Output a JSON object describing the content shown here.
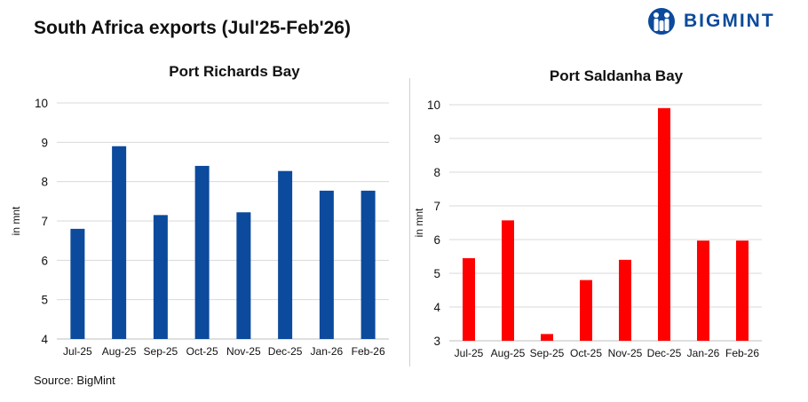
{
  "page_title": "South Africa exports (Jul'25-Feb'26)",
  "logo": {
    "text": "BIGMINT",
    "icon": "bigmint-logo-icon",
    "color": "#0b4a9c"
  },
  "source": "Source: BigMint",
  "chart_data": [
    {
      "type": "bar",
      "title": "Port Richards Bay",
      "ylabel": "in mnt",
      "xlabel": "",
      "categories": [
        "Jul-25",
        "Aug-25",
        "Sep-25",
        "Oct-25",
        "Nov-25",
        "Dec-25",
        "Jan-26",
        "Feb-26"
      ],
      "values": [
        6.8,
        8.9,
        7.15,
        8.4,
        7.22,
        8.27,
        7.77,
        7.77
      ],
      "ylim": [
        4,
        10
      ],
      "yticks": [
        4,
        5,
        6,
        7,
        8,
        9,
        10
      ],
      "grid": true,
      "color": "#0b4a9c"
    },
    {
      "type": "bar",
      "title": "Port Saldanha Bay",
      "ylabel": "in mnt",
      "xlabel": "",
      "categories": [
        "Jul-25",
        "Aug-25",
        "Sep-25",
        "Oct-25",
        "Nov-25",
        "Dec-25",
        "Jan-26",
        "Feb-26"
      ],
      "values": [
        5.45,
        6.57,
        3.2,
        4.8,
        5.4,
        9.9,
        5.97,
        5.97
      ],
      "ylim": [
        3,
        10
      ],
      "yticks": [
        3,
        4,
        5,
        6,
        7,
        8,
        9,
        10
      ],
      "grid": true,
      "color": "#ff0000"
    }
  ]
}
